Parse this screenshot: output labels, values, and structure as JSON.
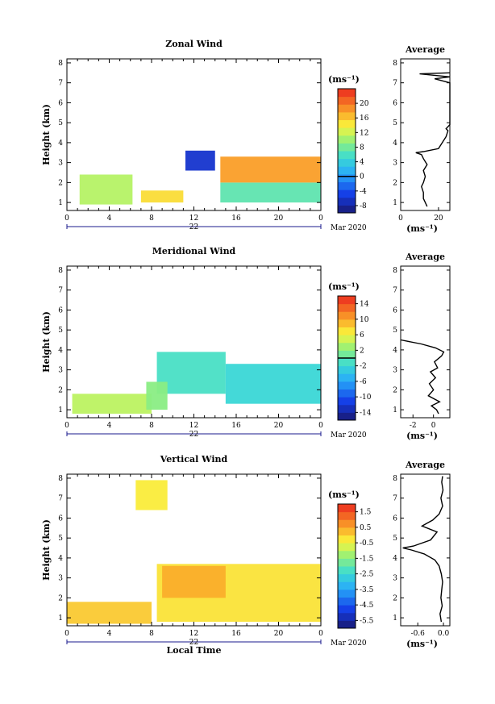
{
  "chart_data": [
    {
      "type": "heatmap",
      "title": "Zonal Wind",
      "ylabel": "Height (km)",
      "xlabel": "",
      "x_ticks": [
        "0",
        "4",
        "8",
        "12",
        "16",
        "20",
        "0"
      ],
      "y_ticks": [
        "1",
        "2",
        "3",
        "4",
        "5",
        "6",
        "7",
        "8"
      ],
      "xlim": [
        0,
        24
      ],
      "ylim": [
        0.6,
        8.2
      ],
      "date_label": "22",
      "month_year": "Mar 2020",
      "colorbar": {
        "unit": "(ms⁻¹)",
        "range": [
          -10,
          24
        ],
        "ticks": [
          "-8",
          "-4",
          "0",
          "4",
          "8",
          "12",
          "16",
          "20"
        ],
        "zero_line": 0
      },
      "regions": [
        {
          "x": [
            1.2,
            6.2
          ],
          "y": [
            0.9,
            2.4
          ],
          "value": 11
        },
        {
          "x": [
            7.0,
            11.0
          ],
          "y": [
            1.0,
            1.6
          ],
          "value": 15
        },
        {
          "x": [
            11.2,
            14.0
          ],
          "y": [
            2.6,
            3.6
          ],
          "value": -6
        },
        {
          "x": [
            14.5,
            24.0
          ],
          "y": [
            1.0,
            2.0
          ],
          "value": 7
        },
        {
          "x": [
            14.5,
            24.0
          ],
          "y": [
            2.0,
            3.3
          ],
          "value": 18
        }
      ],
      "average": {
        "title": "Average",
        "xlabel": "(ms⁻¹)",
        "x_ticks": [
          "0",
          "20"
        ],
        "xlim": [
          0,
          26
        ],
        "height": [
          0.8,
          1.0,
          1.2,
          1.5,
          1.8,
          2.0,
          2.3,
          2.6,
          2.9,
          3.2,
          3.4,
          3.5,
          3.55,
          3.7,
          4.0,
          4.3,
          4.6,
          4.7,
          4.9,
          5.0,
          7.0,
          7.2,
          7.3,
          7.45,
          7.5
        ],
        "value": [
          14,
          13,
          12,
          12,
          11,
          12,
          13,
          12,
          14,
          12,
          11,
          8,
          12,
          20,
          22,
          24,
          25,
          24,
          26,
          26,
          26,
          18,
          26,
          10,
          26
        ]
      }
    },
    {
      "type": "heatmap",
      "title": "Meridional Wind",
      "ylabel": "Height (km)",
      "xlabel": "",
      "x_ticks": [
        "0",
        "4",
        "8",
        "12",
        "16",
        "20",
        "0"
      ],
      "y_ticks": [
        "1",
        "2",
        "3",
        "4",
        "5",
        "6",
        "7",
        "8"
      ],
      "xlim": [
        0,
        24
      ],
      "ylim": [
        0.6,
        8.2
      ],
      "date_label": "22",
      "month_year": "Mar 2020",
      "colorbar": {
        "unit": "(ms⁻¹)",
        "range": [
          -16,
          16
        ],
        "ticks": [
          "-14",
          "-10",
          "-6",
          "-2",
          "2",
          "6",
          "10",
          "14"
        ],
        "zero_line": 0
      },
      "regions": [
        {
          "x": [
            0.5,
            8.0
          ],
          "y": [
            0.8,
            1.8
          ],
          "value": 4
        },
        {
          "x": [
            8.5,
            15.0
          ],
          "y": [
            1.8,
            3.9
          ],
          "value": -1
        },
        {
          "x": [
            15.0,
            24.0
          ],
          "y": [
            1.3,
            3.3
          ],
          "value": -2
        },
        {
          "x": [
            7.5,
            9.5
          ],
          "y": [
            1.0,
            2.4
          ],
          "value": 2
        }
      ],
      "average": {
        "title": "Average",
        "xlabel": "(ms⁻¹)",
        "x_ticks": [
          "-2",
          "0"
        ],
        "xlim": [
          -3.2,
          1.6
        ],
        "height": [
          0.8,
          1.0,
          1.2,
          1.4,
          1.7,
          2.0,
          2.3,
          2.6,
          2.9,
          3.1,
          3.4,
          3.7,
          3.9,
          4.1,
          4.3,
          4.5
        ],
        "value": [
          0.5,
          0.3,
          -0.2,
          0.6,
          -0.5,
          0.0,
          -0.4,
          0.2,
          -0.3,
          0.4,
          0.1,
          0.8,
          1.0,
          0.2,
          -1.2,
          -3.2
        ]
      }
    },
    {
      "type": "heatmap",
      "title": "Vertical Wind",
      "ylabel": "Height (km)",
      "xlabel": "Local Time",
      "x_ticks": [
        "0",
        "4",
        "8",
        "12",
        "16",
        "20",
        "0"
      ],
      "y_ticks": [
        "1",
        "2",
        "3",
        "4",
        "5",
        "6",
        "7",
        "8"
      ],
      "xlim": [
        0,
        24
      ],
      "ylim": [
        0.6,
        8.2
      ],
      "date_label": "22",
      "month_year": "Mar 2020",
      "colorbar": {
        "unit": "(ms⁻¹)",
        "range": [
          -6,
          2
        ],
        "ticks": [
          "-5.5",
          "-4.5",
          "-3.5",
          "-2.5",
          "-1.5",
          "-0.5",
          "0.5",
          "1.5"
        ],
        "zero_line": null
      },
      "regions": [
        {
          "x": [
            0.0,
            8.0
          ],
          "y": [
            0.7,
            1.8
          ],
          "value": 0.1
        },
        {
          "x": [
            8.5,
            24.0
          ],
          "y": [
            0.8,
            3.7
          ],
          "value": -0.2
        },
        {
          "x": [
            9.0,
            15.0
          ],
          "y": [
            2.0,
            3.6
          ],
          "value": 0.4
        },
        {
          "x": [
            6.5,
            9.5
          ],
          "y": [
            6.4,
            7.9
          ],
          "value": -0.3
        }
      ],
      "average": {
        "title": "Average",
        "xlabel": "(ms⁻¹)",
        "x_ticks": [
          "-0.6",
          "0.0"
        ],
        "xlim": [
          -1.0,
          0.15
        ],
        "height": [
          0.8,
          1.2,
          1.6,
          2.0,
          2.4,
          2.8,
          3.2,
          3.6,
          3.9,
          4.2,
          4.4,
          4.5,
          4.6,
          4.9,
          5.3,
          5.6,
          5.9,
          6.2,
          6.6,
          7.0,
          7.4,
          7.8,
          8.1
        ],
        "value": [
          -0.05,
          -0.08,
          -0.03,
          -0.06,
          -0.04,
          -0.02,
          -0.05,
          -0.1,
          -0.2,
          -0.45,
          -0.75,
          -0.95,
          -0.7,
          -0.3,
          -0.15,
          -0.5,
          -0.25,
          -0.1,
          -0.02,
          -0.06,
          -0.01,
          -0.04,
          -0.02
        ]
      }
    }
  ]
}
